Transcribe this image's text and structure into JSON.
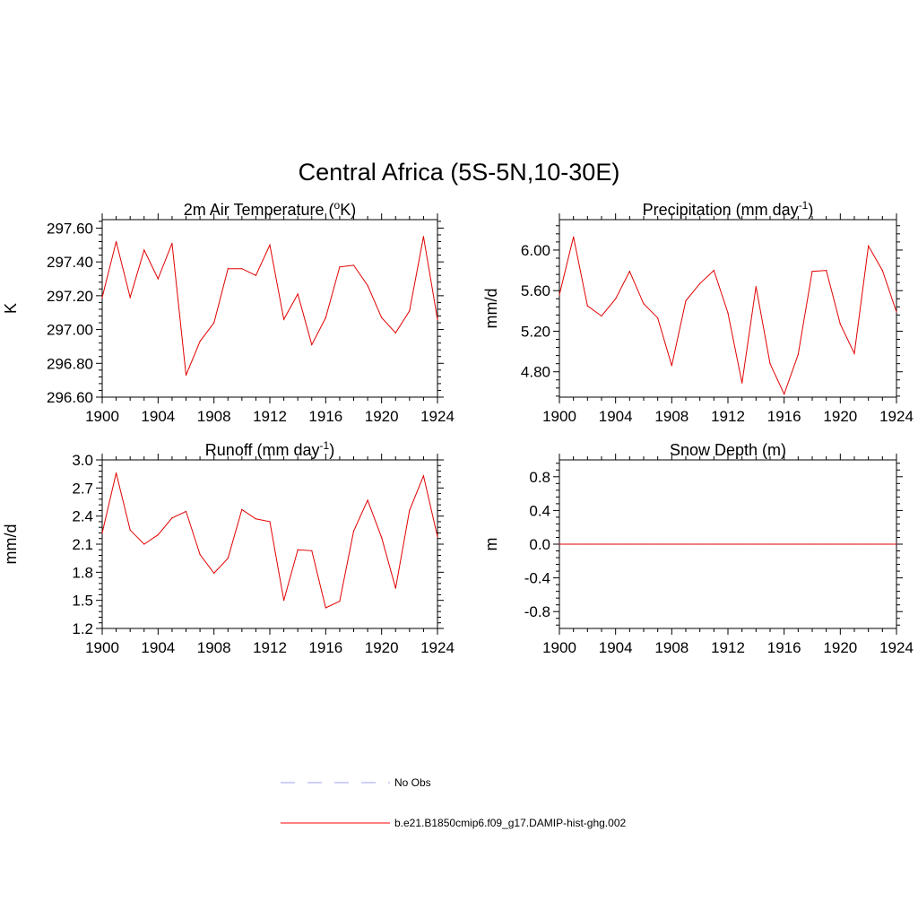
{
  "figure": {
    "title": "Central Africa (5S-5N,10-30E)"
  },
  "chart_data": [
    {
      "type": "line",
      "title": "2m Air Temperature (",
      "title_sup": "o",
      "title_end": "K)",
      "xlabel": "",
      "ylabel": "K",
      "xlim": [
        1900,
        1924
      ],
      "ylim": [
        296.6,
        297.65
      ],
      "x_ticks": [
        "1900",
        "1904",
        "1908",
        "1912",
        "1916",
        "1920",
        "1924"
      ],
      "y_ticks": [
        "296.60",
        "296.80",
        "297.00",
        "297.20",
        "297.40",
        "297.60"
      ],
      "x": [
        1900,
        1901,
        1902,
        1903,
        1904,
        1905,
        1906,
        1907,
        1908,
        1909,
        1910,
        1911,
        1912,
        1913,
        1914,
        1915,
        1916,
        1917,
        1918,
        1919,
        1920,
        1921,
        1922,
        1923,
        1924
      ],
      "series": [
        {
          "name": "b.e21.B1850cmip6.f09_g17.DAMIP-hist-ghg.002",
          "values": [
            297.19,
            297.52,
            297.19,
            297.47,
            297.3,
            297.51,
            296.73,
            296.93,
            297.04,
            297.36,
            297.36,
            297.32,
            297.5,
            297.06,
            297.21,
            296.91,
            297.07,
            297.37,
            297.38,
            297.26,
            297.07,
            296.98,
            297.11,
            297.55,
            297.06
          ]
        }
      ]
    },
    {
      "type": "line",
      "title": "Precipitation (mm day",
      "title_sup": "-1",
      "title_end": ")",
      "xlabel": "",
      "ylabel": "mm/d",
      "xlim": [
        1900,
        1924
      ],
      "ylim": [
        4.55,
        6.3
      ],
      "x_ticks": [
        "1900",
        "1904",
        "1908",
        "1912",
        "1916",
        "1920",
        "1924"
      ],
      "y_ticks": [
        "4.80",
        "5.20",
        "5.60",
        "6.00"
      ],
      "x": [
        1900,
        1901,
        1902,
        1903,
        1904,
        1905,
        1906,
        1907,
        1908,
        1909,
        1910,
        1911,
        1912,
        1913,
        1914,
        1915,
        1916,
        1917,
        1918,
        1919,
        1920,
        1921,
        1922,
        1923,
        1924
      ],
      "series": [
        {
          "name": "b.e21.B1850cmip6.f09_g17.DAMIP-hist-ghg.002",
          "values": [
            5.56,
            6.13,
            5.45,
            5.35,
            5.52,
            5.79,
            5.47,
            5.33,
            4.86,
            5.5,
            5.67,
            5.8,
            5.38,
            4.69,
            5.64,
            4.88,
            4.58,
            4.97,
            5.79,
            5.8,
            5.27,
            4.98,
            6.04,
            5.8,
            5.39
          ]
        }
      ]
    },
    {
      "type": "line",
      "title": "Runoff (mm day",
      "title_sup": "-1",
      "title_end": ")",
      "xlabel": "",
      "ylabel": "mm/d",
      "xlim": [
        1900,
        1924
      ],
      "ylim": [
        1.2,
        3.0
      ],
      "x_ticks": [
        "1900",
        "1904",
        "1908",
        "1912",
        "1916",
        "1920",
        "1924"
      ],
      "y_ticks": [
        "1.2",
        "1.5",
        "1.8",
        "2.1",
        "2.4",
        "2.7",
        "3.0"
      ],
      "x": [
        1900,
        1901,
        1902,
        1903,
        1904,
        1905,
        1906,
        1907,
        1908,
        1909,
        1910,
        1911,
        1912,
        1913,
        1914,
        1915,
        1916,
        1917,
        1918,
        1919,
        1920,
        1921,
        1922,
        1923,
        1924
      ],
      "series": [
        {
          "name": "b.e21.B1850cmip6.f09_g17.DAMIP-hist-ghg.002",
          "values": [
            2.22,
            2.86,
            2.25,
            2.1,
            2.2,
            2.38,
            2.45,
            1.99,
            1.79,
            1.95,
            2.47,
            2.37,
            2.34,
            1.5,
            2.04,
            2.03,
            1.42,
            1.49,
            2.24,
            2.57,
            2.17,
            1.63,
            2.46,
            2.83,
            2.18
          ]
        }
      ]
    },
    {
      "type": "line",
      "title": "Snow Depth (m)",
      "title_sup": "",
      "title_end": "",
      "xlabel": "",
      "ylabel": "m",
      "xlim": [
        1900,
        1924
      ],
      "ylim": [
        -1.0,
        1.0
      ],
      "x_ticks": [
        "1900",
        "1904",
        "1908",
        "1912",
        "1916",
        "1920",
        "1924"
      ],
      "y_ticks": [
        "-0.8",
        "-0.4",
        "0.0",
        "0.4",
        "0.8"
      ],
      "x": [
        1900,
        1901,
        1902,
        1903,
        1904,
        1905,
        1906,
        1907,
        1908,
        1909,
        1910,
        1911,
        1912,
        1913,
        1914,
        1915,
        1916,
        1917,
        1918,
        1919,
        1920,
        1921,
        1922,
        1923,
        1924
      ],
      "series": [
        {
          "name": "b.e21.B1850cmip6.f09_g17.DAMIP-hist-ghg.002",
          "values": [
            0,
            0,
            0,
            0,
            0,
            0,
            0,
            0,
            0,
            0,
            0,
            0,
            0,
            0,
            0,
            0,
            0,
            0,
            0,
            0,
            0,
            0,
            0,
            0,
            0
          ]
        }
      ]
    }
  ],
  "legend": {
    "position": "bottom-center",
    "items": [
      {
        "label": "No Obs",
        "color": "#9f9ff5",
        "style": "dashed"
      },
      {
        "label": "b.e21.B1850cmip6.f09_g17.DAMIP-hist-ghg.002",
        "color": "#ff0000",
        "style": "solid"
      }
    ]
  },
  "colors": {
    "series": "#e00000",
    "axis": "#000000"
  }
}
